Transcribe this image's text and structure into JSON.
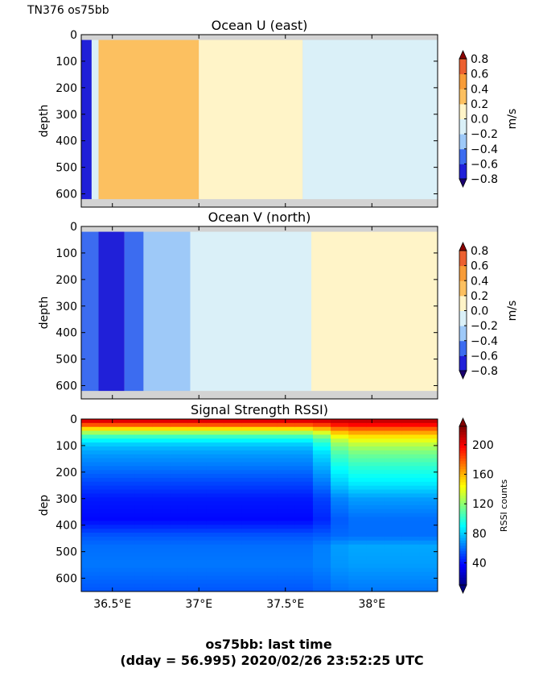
{
  "figure": {
    "corner_label": "TN376 os75bb",
    "footer_line1": "os75bb: last time",
    "footer_line2": "(dday = 56.995) 2020/02/26 23:52:25 UTC"
  },
  "colors": {
    "missing_data": "#d3d3d3",
    "frame": "#000000"
  },
  "chart_data": [
    {
      "type": "heatmap",
      "title": "Ocean U (east)",
      "xlabel": "",
      "ylabel": "depth",
      "ylim": [
        650,
        0
      ],
      "yticks": [
        0,
        100,
        200,
        300,
        400,
        500,
        600
      ],
      "xlim": [
        36.32,
        38.38
      ],
      "xticks": [
        36.5,
        37,
        37.5,
        38
      ],
      "xtick_labels": [
        "36.5°E",
        "37°E",
        "37.5°E",
        "38°E"
      ],
      "show_xtick_labels": false,
      "colorbar": {
        "label": "m/s",
        "range": [
          -0.8,
          0.8
        ],
        "ticks": [
          "0.8",
          "0.6",
          "0.4",
          "0.2",
          "0.0",
          "−0.2",
          "−0.4",
          "−0.6",
          "−0.8"
        ],
        "levels": [
          -0.8,
          -0.6,
          -0.4,
          -0.2,
          0.0,
          0.2,
          0.4,
          0.6,
          0.8
        ],
        "colors": [
          "#2020d8",
          "#3c6cf0",
          "#9ec9f8",
          "#daf0f8",
          "#fff4c8",
          "#fcc060",
          "#f89c38",
          "#ec6030"
        ],
        "under_color": "#1a0070",
        "over_color": "#8a0000",
        "extend": "both"
      },
      "regions": [
        {
          "x": [
            36.32,
            36.38
          ],
          "depth": [
            20,
            620
          ],
          "value": -0.7
        },
        {
          "x": [
            36.38,
            36.42
          ],
          "depth": [
            20,
            620
          ],
          "value": -0.1
        },
        {
          "x": [
            36.42,
            37.0
          ],
          "depth": [
            20,
            620
          ],
          "value": 0.3
        },
        {
          "x": [
            37.0,
            37.6
          ],
          "depth": [
            20,
            620
          ],
          "value": 0.1
        },
        {
          "x": [
            37.6,
            38.38
          ],
          "depth": [
            20,
            620
          ],
          "value": -0.1
        }
      ]
    },
    {
      "type": "heatmap",
      "title": "Ocean V (north)",
      "xlabel": "",
      "ylabel": "depth",
      "ylim": [
        650,
        0
      ],
      "yticks": [
        0,
        100,
        200,
        300,
        400,
        500,
        600
      ],
      "xlim": [
        36.32,
        38.38
      ],
      "xticks": [
        36.5,
        37,
        37.5,
        38
      ],
      "xtick_labels": [
        "36.5°E",
        "37°E",
        "37.5°E",
        "38°E"
      ],
      "show_xtick_labels": false,
      "colorbar": {
        "label": "m/s",
        "range": [
          -0.8,
          0.8
        ],
        "ticks": [
          "0.8",
          "0.6",
          "0.4",
          "0.2",
          "0.0",
          "−0.2",
          "−0.4",
          "−0.6",
          "−0.8"
        ],
        "levels": [
          -0.8,
          -0.6,
          -0.4,
          -0.2,
          0.0,
          0.2,
          0.4,
          0.6,
          0.8
        ],
        "colors": [
          "#2020d8",
          "#3c6cf0",
          "#9ec9f8",
          "#daf0f8",
          "#fff4c8",
          "#fcc060",
          "#f89c38",
          "#ec6030"
        ],
        "under_color": "#1a0070",
        "over_color": "#8a0000",
        "extend": "both"
      },
      "regions": [
        {
          "x": [
            36.32,
            36.42
          ],
          "depth": [
            20,
            620
          ],
          "value": -0.5
        },
        {
          "x": [
            36.42,
            36.57
          ],
          "depth": [
            20,
            620
          ],
          "value": -0.7
        },
        {
          "x": [
            36.57,
            36.68
          ],
          "depth": [
            20,
            620
          ],
          "value": -0.5
        },
        {
          "x": [
            36.68,
            36.95
          ],
          "depth": [
            20,
            620
          ],
          "value": -0.3
        },
        {
          "x": [
            36.95,
            37.65
          ],
          "depth": [
            20,
            620
          ],
          "value": -0.1
        },
        {
          "x": [
            37.65,
            38.38
          ],
          "depth": [
            20,
            620
          ],
          "value": 0.1
        }
      ]
    },
    {
      "type": "heatmap",
      "title": "Signal Strength RSSI)",
      "xlabel": "",
      "ylabel": "dep",
      "ylim": [
        650,
        0
      ],
      "yticks": [
        0,
        100,
        200,
        300,
        400,
        500,
        600
      ],
      "xlim": [
        36.32,
        38.38
      ],
      "xticks": [
        36.5,
        37,
        37.5,
        38
      ],
      "xtick_labels": [
        "36.5°E",
        "37°E",
        "37.5°E",
        "38°E"
      ],
      "show_xtick_labels": true,
      "colorbar": {
        "label": "RSSI counts",
        "range": [
          10,
          225
        ],
        "ticks": [
          "200",
          "160",
          "120",
          "80",
          "40"
        ],
        "tick_values": [
          200,
          160,
          120,
          80,
          40
        ],
        "extend": "both"
      },
      "rssi_profile": {
        "depth": [
          0,
          20,
          40,
          60,
          80,
          100,
          130,
          180,
          250,
          300,
          380,
          440,
          480,
          550,
          650
        ],
        "west": [
          215,
          185,
          145,
          110,
          90,
          78,
          70,
          62,
          50,
          42,
          38,
          55,
          60,
          62,
          55
        ],
        "east": [
          215,
          200,
          175,
          155,
          140,
          128,
          115,
          100,
          85,
          70,
          60,
          60,
          72,
          70,
          62
        ]
      }
    }
  ]
}
